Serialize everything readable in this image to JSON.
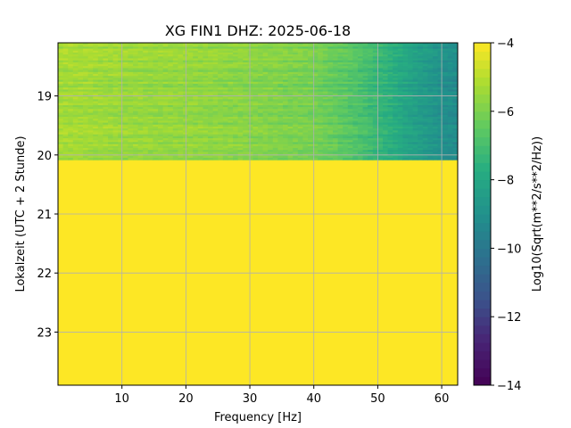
{
  "chart_data": {
    "type": "heatmap",
    "title": "XG FIN1  DHZ: 2025-06-18",
    "xlabel": "Frequency [Hz]",
    "ylabel": "Lokalzeit (UTC + 2 Stunde)",
    "colorbar_label": "Log10(Sqrt(m**2/s**2/Hz))",
    "x_ticks": [
      10,
      20,
      30,
      40,
      50,
      60
    ],
    "y_ticks": [
      19,
      20,
      21,
      22,
      23
    ],
    "colorbar_ticks": [
      -4,
      -6,
      -8,
      -10,
      -12,
      -14
    ],
    "xlim": [
      0,
      62.5
    ],
    "ylim_hours": [
      18.1,
      23.9
    ],
    "clim": [
      -14,
      -4
    ],
    "colormap": "viridis",
    "grid": true,
    "data_end_hour": 20.08,
    "no_data_fill_value": -4,
    "spectrum_profile": {
      "frequency_hz": [
        0,
        10,
        20,
        30,
        40,
        45,
        50,
        55,
        60,
        62.5
      ],
      "log10_amplitude": [
        -5.3,
        -5.5,
        -5.6,
        -5.8,
        -6.1,
        -6.6,
        -7.3,
        -8.2,
        -9.0,
        -9.2
      ]
    }
  }
}
